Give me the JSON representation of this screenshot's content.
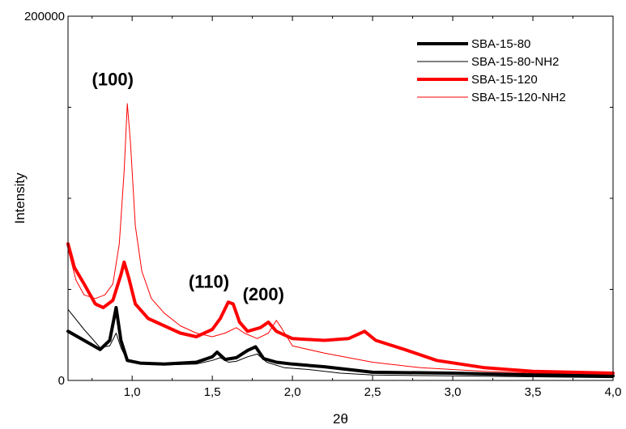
{
  "chart_data": {
    "type": "line",
    "title": "",
    "xlabel": "2θ",
    "ylabel": "Intensity",
    "xlim": [
      0.6,
      4.0
    ],
    "ylim": [
      0,
      200000
    ],
    "x_ticks": [
      {
        "value": 1.0,
        "label": "1,0"
      },
      {
        "value": 1.5,
        "label": "1,5"
      },
      {
        "value": 2.0,
        "label": "2,0"
      },
      {
        "value": 2.5,
        "label": "2,5"
      },
      {
        "value": 3.0,
        "label": "3,0"
      },
      {
        "value": 3.5,
        "label": "3,5"
      },
      {
        "value": 4.0,
        "label": "4,0"
      }
    ],
    "y_ticks": [
      {
        "value": 0,
        "label": "0"
      },
      {
        "value": 200000,
        "label": "200000"
      }
    ],
    "legend_position": "top-right",
    "grid": false,
    "annotations": [
      {
        "text": "(100)",
        "x": 0.98,
        "y": 162000
      },
      {
        "text": "(110)",
        "x": 1.58,
        "y": 51000
      },
      {
        "text": "(200)",
        "x": 1.92,
        "y": 44000
      }
    ],
    "series": [
      {
        "name": "SBA-15-80",
        "color": "#000000",
        "width": "thick",
        "points": [
          [
            0.6,
            27000
          ],
          [
            0.7,
            22000
          ],
          [
            0.8,
            17000
          ],
          [
            0.86,
            22000
          ],
          [
            0.9,
            40000
          ],
          [
            0.93,
            22000
          ],
          [
            0.97,
            11000
          ],
          [
            1.05,
            9500
          ],
          [
            1.2,
            9000
          ],
          [
            1.4,
            10000
          ],
          [
            1.5,
            13000
          ],
          [
            1.53,
            15500
          ],
          [
            1.58,
            11500
          ],
          [
            1.65,
            12500
          ],
          [
            1.72,
            16500
          ],
          [
            1.77,
            18500
          ],
          [
            1.82,
            12000
          ],
          [
            1.9,
            10000
          ],
          [
            2.0,
            9000
          ],
          [
            2.2,
            7500
          ],
          [
            2.5,
            4500
          ],
          [
            3.0,
            4000
          ],
          [
            3.5,
            3000
          ],
          [
            4.0,
            2500
          ]
        ]
      },
      {
        "name": "SBA-15-80-NH2",
        "color": "#000000",
        "width": "thin",
        "points": [
          [
            0.6,
            39000
          ],
          [
            0.7,
            28000
          ],
          [
            0.8,
            18000
          ],
          [
            0.86,
            19000
          ],
          [
            0.9,
            26000
          ],
          [
            0.93,
            18000
          ],
          [
            0.97,
            11000
          ],
          [
            1.05,
            9000
          ],
          [
            1.2,
            8500
          ],
          [
            1.4,
            9000
          ],
          [
            1.5,
            11000
          ],
          [
            1.55,
            12500
          ],
          [
            1.6,
            10000
          ],
          [
            1.65,
            10500
          ],
          [
            1.72,
            13000
          ],
          [
            1.78,
            14500
          ],
          [
            1.84,
            10000
          ],
          [
            1.95,
            7000
          ],
          [
            2.1,
            6000
          ],
          [
            2.3,
            4000
          ],
          [
            2.5,
            3000
          ],
          [
            3.0,
            2500
          ],
          [
            3.5,
            2000
          ],
          [
            4.0,
            1500
          ]
        ]
      },
      {
        "name": "SBA-15-120",
        "color": "#ff0000",
        "width": "thick",
        "points": [
          [
            0.6,
            75000
          ],
          [
            0.64,
            62000
          ],
          [
            0.7,
            53000
          ],
          [
            0.77,
            42000
          ],
          [
            0.82,
            40000
          ],
          [
            0.88,
            44000
          ],
          [
            0.93,
            58000
          ],
          [
            0.95,
            65000
          ],
          [
            0.98,
            56000
          ],
          [
            1.02,
            42000
          ],
          [
            1.1,
            34000
          ],
          [
            1.2,
            30000
          ],
          [
            1.3,
            26000
          ],
          [
            1.4,
            24000
          ],
          [
            1.5,
            28000
          ],
          [
            1.55,
            34000
          ],
          [
            1.6,
            43000
          ],
          [
            1.63,
            42000
          ],
          [
            1.67,
            32000
          ],
          [
            1.72,
            27000
          ],
          [
            1.8,
            29000
          ],
          [
            1.85,
            32000
          ],
          [
            1.9,
            27000
          ],
          [
            2.0,
            23000
          ],
          [
            2.2,
            22000
          ],
          [
            2.35,
            23000
          ],
          [
            2.45,
            27000
          ],
          [
            2.52,
            22000
          ],
          [
            2.7,
            17000
          ],
          [
            2.9,
            11000
          ],
          [
            3.2,
            7000
          ],
          [
            3.5,
            5000
          ],
          [
            4.0,
            4000
          ]
        ]
      },
      {
        "name": "SBA-15-120-NH2",
        "color": "#ff0000",
        "width": "thin",
        "points": [
          [
            0.6,
            72000
          ],
          [
            0.65,
            55000
          ],
          [
            0.7,
            47000
          ],
          [
            0.77,
            45000
          ],
          [
            0.83,
            47000
          ],
          [
            0.88,
            53000
          ],
          [
            0.92,
            75000
          ],
          [
            0.95,
            115000
          ],
          [
            0.97,
            152000
          ],
          [
            0.99,
            130000
          ],
          [
            1.02,
            85000
          ],
          [
            1.06,
            60000
          ],
          [
            1.12,
            45000
          ],
          [
            1.2,
            37000
          ],
          [
            1.3,
            30000
          ],
          [
            1.4,
            26000
          ],
          [
            1.5,
            24000
          ],
          [
            1.58,
            26000
          ],
          [
            1.65,
            29000
          ],
          [
            1.7,
            26000
          ],
          [
            1.78,
            23000
          ],
          [
            1.85,
            26000
          ],
          [
            1.9,
            33000
          ],
          [
            1.93,
            29000
          ],
          [
            2.0,
            19000
          ],
          [
            2.2,
            15000
          ],
          [
            2.5,
            10000
          ],
          [
            2.8,
            7000
          ],
          [
            3.2,
            5000
          ],
          [
            3.5,
            4000
          ],
          [
            4.0,
            3000
          ]
        ]
      }
    ]
  }
}
